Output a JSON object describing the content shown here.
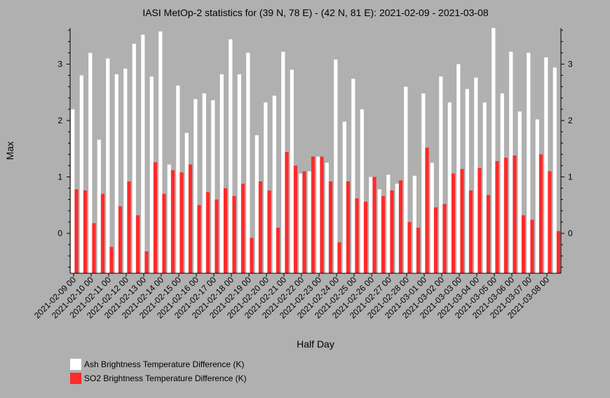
{
  "chart_data": {
    "type": "bar",
    "title": "IASI MetOp-2 statistics for (39 N, 78 E) - (42 N, 81 E): 2021-02-09 - 2021-03-08",
    "xlabel": "Half Day",
    "ylabel": "Max",
    "ylim": [
      -0.7,
      3.65
    ],
    "yticks": [
      0,
      1,
      2,
      3
    ],
    "ytick_labels": [
      "0",
      "1",
      "2",
      "3"
    ],
    "grid": false,
    "legend_position": "bottom-left",
    "categories": [
      "2021-02-09 00",
      "2021-02-09 12",
      "2021-02-10 00",
      "2021-02-10 12",
      "2021-02-11 00",
      "2021-02-11 12",
      "2021-02-12 00",
      "2021-02-12 12",
      "2021-02-13 00",
      "2021-02-13 12",
      "2021-02-14 00",
      "2021-02-14 12",
      "2021-02-15 00",
      "2021-02-15 12",
      "2021-02-16 00",
      "2021-02-16 12",
      "2021-02-17 00",
      "2021-02-17 12",
      "2021-02-18 00",
      "2021-02-18 12",
      "2021-02-19 00",
      "2021-02-19 12",
      "2021-02-20 00",
      "2021-02-20 12",
      "2021-02-21 00",
      "2021-02-21 12",
      "2021-02-22 00",
      "2021-02-22 12",
      "2021-02-23 00",
      "2021-02-23 12",
      "2021-02-24 00",
      "2021-02-24 12",
      "2021-02-25 00",
      "2021-02-25 12",
      "2021-02-26 00",
      "2021-02-26 12",
      "2021-02-27 00",
      "2021-02-27 12",
      "2021-02-28 00",
      "2021-02-28 12",
      "2021-03-01 00",
      "2021-03-01 12",
      "2021-03-02 00",
      "2021-03-02 12",
      "2021-03-03 00",
      "2021-03-03 12",
      "2021-03-04 00",
      "2021-03-04 12",
      "2021-03-05 00",
      "2021-03-05 12",
      "2021-03-06 00",
      "2021-03-06 12",
      "2021-03-07 00",
      "2021-03-07 12",
      "2021-03-08 00",
      "2021-03-08 12"
    ],
    "xtick_labels": [
      "2021-02-09 00",
      "2021-02-10 00",
      "2021-02-11 00",
      "2021-02-12 00",
      "2021-02-13 00",
      "2021-02-14 00",
      "2021-02-15 00",
      "2021-02-16 00",
      "2021-02-17 00",
      "2021-02-18 00",
      "2021-02-19 00",
      "2021-02-20 00",
      "2021-02-21 00",
      "2021-02-22 00",
      "2021-02-23 00",
      "2021-02-24 00",
      "2021-02-25 00",
      "2021-02-26 00",
      "2021-02-27 00",
      "2021-02-28 00",
      "2021-03-01 00",
      "2021-03-02 00",
      "2021-03-03 00",
      "2021-03-04 00",
      "2021-03-05 00",
      "2021-03-06 00",
      "2021-03-07 00",
      "2021-03-08 00"
    ],
    "series": [
      {
        "name": "Ash Brightness Temperature Difference (K)",
        "color": "#ffffff",
        "values": [
          2.2,
          2.8,
          3.2,
          1.66,
          3.1,
          2.82,
          2.92,
          3.36,
          3.52,
          2.78,
          3.58,
          1.22,
          2.62,
          1.78,
          2.38,
          2.48,
          2.36,
          2.82,
          3.44,
          2.82,
          3.2,
          1.74,
          2.32,
          2.44,
          3.22,
          2.9,
          1.06,
          1.1,
          1.36,
          1.25,
          3.08,
          1.98,
          2.74,
          2.2,
          1.0,
          0.78,
          1.04,
          0.88,
          2.6,
          1.02,
          2.48,
          1.25,
          2.78,
          2.32,
          3.0,
          2.56,
          2.76,
          2.32,
          3.64,
          2.48,
          3.22,
          2.16,
          3.2,
          2.02,
          3.12,
          2.94
        ]
      },
      {
        "name": "SO2 Brightness Temperature Difference (K)",
        "color": "#ff2a2a",
        "values": [
          0.78,
          0.76,
          0.18,
          0.7,
          -0.24,
          0.48,
          0.92,
          0.32,
          -0.32,
          1.26,
          0.7,
          1.12,
          1.08,
          1.22,
          0.5,
          0.73,
          0.6,
          0.8,
          0.66,
          0.88,
          -0.08,
          0.92,
          0.76,
          0.1,
          1.44,
          1.2,
          1.1,
          1.36,
          1.36,
          0.92,
          -0.16,
          0.92,
          0.62,
          0.56,
          1.0,
          0.66,
          0.76,
          0.94,
          0.2,
          0.1,
          1.52,
          0.46,
          0.52,
          1.06,
          1.14,
          0.76,
          1.16,
          0.68,
          1.28,
          1.34,
          1.38,
          0.32,
          0.24,
          1.4,
          1.1,
          0.04
        ]
      }
    ]
  }
}
